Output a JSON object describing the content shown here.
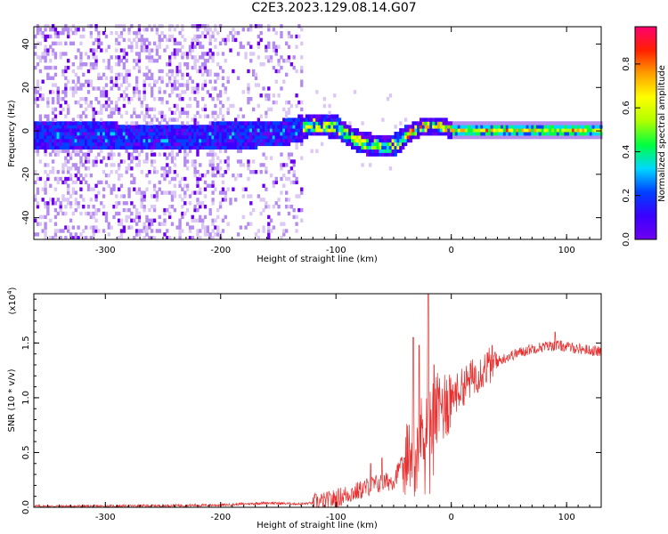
{
  "title": "C2E3.2023.129.08.14.G07",
  "colors": {
    "rainbow": [
      "#ffffff",
      "#dcc8f5",
      "#b48cf0",
      "#6e00f0",
      "#3a00ff",
      "#0040ff",
      "#00d8ff",
      "#00ff40",
      "#b0ff00",
      "#ffff00",
      "#ffa000",
      "#ff2000",
      "#ff0070"
    ],
    "snr_line": "#e83030"
  },
  "chart_data": [
    {
      "type": "heatmap",
      "xlabel": "Height of straight line (km)",
      "ylabel": "Frequency (Hz)",
      "xlim": [
        -362,
        130
      ],
      "ylim": [
        -50,
        48
      ],
      "x_ticks": [
        "-300",
        "-200",
        "-100",
        "0",
        "100"
      ],
      "x_tick_values": [
        -300,
        -200,
        -100,
        0,
        100
      ],
      "y_ticks": [
        "-40",
        "-20",
        "0",
        "20",
        "40"
      ],
      "y_tick_values": [
        -40,
        -20,
        0,
        20,
        40
      ],
      "colorbar": {
        "label": "Normalized spectral amplitude",
        "range": [
          0,
          0.97
        ],
        "ticks": [
          "0.0",
          "0.2",
          "0.4",
          "0.6",
          "0.8"
        ],
        "tick_values": [
          0.0,
          0.2,
          0.4,
          0.6,
          0.8
        ]
      },
      "ridge": {
        "x": [
          -362,
          -300,
          -250,
          -200,
          -150,
          -120,
          -100,
          -90,
          -80,
          -70,
          -60,
          -55,
          -50,
          -45,
          -40,
          -35,
          -30,
          -25,
          -20,
          -15,
          -10,
          0,
          50,
          100,
          130
        ],
        "frequency": [
          -3,
          -3,
          -4,
          -3,
          -2,
          2,
          1,
          -3,
          -6,
          -7,
          -8,
          -8,
          -7,
          -5,
          -3,
          -1,
          0,
          1,
          2,
          2,
          1,
          0,
          0,
          0,
          0
        ]
      },
      "noise_region_x": [
        -362,
        -130
      ]
    },
    {
      "type": "line",
      "xlabel": "Height of straight line (km)",
      "ylabel": "SNR (10 * v/v)",
      "y_multiplier_label": "(x10",
      "y_multiplier_exp": "4",
      "y_multiplier_close": ")",
      "xlim": [
        -362,
        130
      ],
      "ylim": [
        0,
        1.95
      ],
      "x_ticks": [
        "-300",
        "-200",
        "-100",
        "0",
        "100"
      ],
      "x_tick_values": [
        -300,
        -200,
        -100,
        0,
        100
      ],
      "y_ticks": [
        "0.0",
        "0.5",
        "1.0",
        "1.5"
      ],
      "y_tick_values": [
        0.0,
        0.5,
        1.0,
        1.5
      ],
      "trend": {
        "x": [
          -362,
          -300,
          -200,
          -160,
          -130,
          -110,
          -100,
          -90,
          -80,
          -70,
          -60,
          -50,
          -45,
          -40,
          -35,
          -30,
          -25,
          -20,
          -15,
          -10,
          -5,
          0,
          10,
          20,
          30,
          50,
          70,
          90,
          110,
          130
        ],
        "y": [
          0.01,
          0.01,
          0.02,
          0.04,
          0.03,
          0.05,
          0.08,
          0.12,
          0.15,
          0.2,
          0.22,
          0.25,
          0.35,
          0.4,
          0.5,
          0.6,
          0.7,
          0.8,
          0.85,
          0.9,
          0.95,
          1.0,
          1.1,
          1.2,
          1.28,
          1.38,
          1.45,
          1.48,
          1.45,
          1.42
        ]
      },
      "spikes": [
        {
          "x": -33,
          "y": 1.55
        },
        {
          "x": -28,
          "y": 1.48
        },
        {
          "x": -20,
          "y": 1.95
        },
        {
          "x": -15,
          "y": 1.3
        },
        {
          "x": -60,
          "y": 0.45
        },
        {
          "x": -70,
          "y": 0.4
        },
        {
          "x": 90,
          "y": 1.6
        }
      ]
    }
  ]
}
